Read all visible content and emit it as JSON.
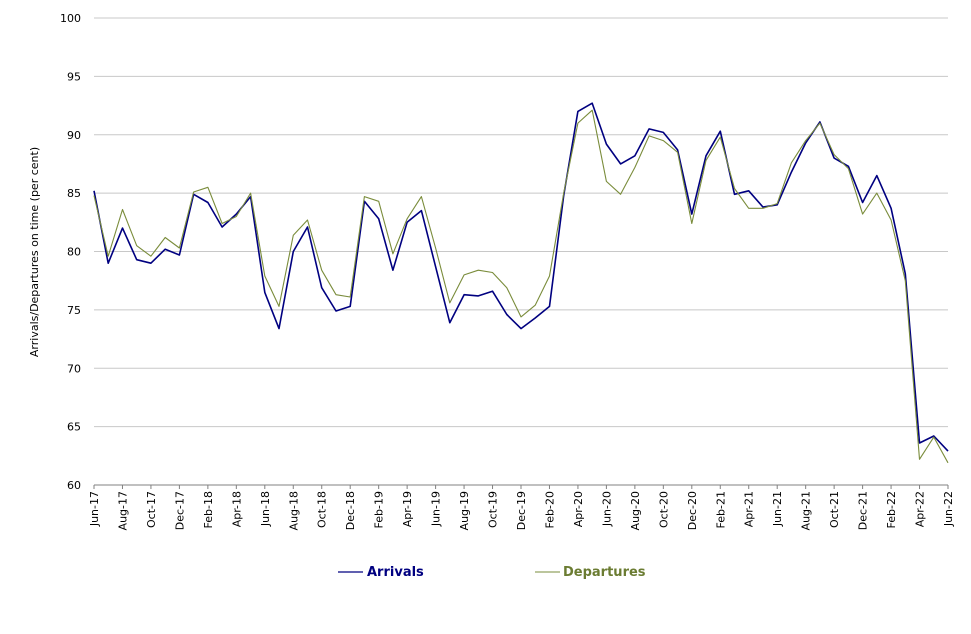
{
  "chart_data": {
    "type": "line",
    "ylabel": "Arrivals/Departures on time (per cent)",
    "xlabel": "",
    "ylim": [
      60,
      100
    ],
    "yticks": [
      60,
      65,
      70,
      75,
      80,
      85,
      90,
      95,
      100
    ],
    "grid": "horizontal",
    "legend_position": "bottom",
    "x": [
      "Jun-17",
      "Jul-17",
      "Aug-17",
      "Sep-17",
      "Oct-17",
      "Nov-17",
      "Dec-17",
      "Jan-18",
      "Feb-18",
      "Mar-18",
      "Apr-18",
      "May-18",
      "Jun-18",
      "Jul-18",
      "Aug-18",
      "Sep-18",
      "Oct-18",
      "Nov-18",
      "Dec-18",
      "Jan-19",
      "Feb-19",
      "Mar-19",
      "Apr-19",
      "May-19",
      "Jun-19",
      "Jul-19",
      "Aug-19",
      "Sep-19",
      "Oct-19",
      "Nov-19",
      "Dec-19",
      "Jan-20",
      "Feb-20",
      "Mar-20",
      "Apr-20",
      "May-20",
      "Jun-20",
      "Jul-20",
      "Aug-20",
      "Sep-20",
      "Oct-20",
      "Nov-20",
      "Dec-20",
      "Jan-21",
      "Feb-21",
      "Mar-21",
      "Apr-21",
      "May-21",
      "Jun-21",
      "Jul-21",
      "Aug-21",
      "Sep-21",
      "Oct-21",
      "Nov-21",
      "Dec-21",
      "Jan-22",
      "Feb-22",
      "Mar-22",
      "Apr-22",
      "May-22",
      "Jun-22"
    ],
    "xtick_labels": [
      "Jun-17",
      "Aug-17",
      "Oct-17",
      "Dec-17",
      "Feb-18",
      "Apr-18",
      "Jun-18",
      "Aug-18",
      "Oct-18",
      "Dec-18",
      "Feb-19",
      "Apr-19",
      "Jun-19",
      "Aug-19",
      "Oct-19",
      "Dec-19",
      "Feb-20",
      "Apr-20",
      "Jun-20",
      "Aug-20",
      "Oct-20",
      "Dec-20",
      "Feb-21",
      "Apr-21",
      "Jun-21",
      "Aug-21",
      "Oct-21",
      "Dec-21",
      "Feb-22",
      "Apr-22",
      "Jun-22"
    ],
    "series": [
      {
        "name": "Arrivals",
        "color": "#000080",
        "values": [
          85.2,
          79.0,
          82.0,
          79.3,
          79.0,
          80.2,
          79.7,
          84.9,
          84.2,
          82.1,
          83.2,
          84.7,
          76.5,
          73.4,
          80.0,
          82.1,
          76.9,
          74.9,
          75.3,
          84.3,
          82.8,
          78.4,
          82.5,
          83.5,
          78.7,
          73.9,
          76.3,
          76.2,
          76.6,
          74.6,
          73.4,
          74.3,
          75.3,
          84.8,
          92.0,
          92.7,
          89.2,
          87.5,
          88.2,
          90.5,
          90.2,
          88.7,
          83.2,
          88.2,
          90.3,
          84.9,
          85.2,
          83.8,
          84.0,
          86.8,
          89.3,
          91.1,
          88.0,
          87.3,
          84.2,
          86.5,
          83.7,
          78.1,
          63.6,
          64.2,
          62.9
        ]
      },
      {
        "name": "Departures",
        "color": "#7a8c3b",
        "values": [
          84.8,
          79.6,
          83.6,
          80.5,
          79.6,
          81.2,
          80.3,
          85.1,
          85.5,
          82.4,
          83.0,
          85.0,
          77.9,
          75.3,
          81.4,
          82.7,
          78.4,
          76.3,
          76.1,
          84.7,
          84.3,
          79.8,
          82.8,
          84.7,
          80.3,
          75.6,
          78.0,
          78.4,
          78.2,
          76.9,
          74.4,
          75.4,
          77.9,
          85.0,
          91.0,
          92.1,
          86.0,
          84.9,
          87.2,
          89.9,
          89.5,
          88.5,
          82.4,
          87.8,
          89.8,
          85.4,
          83.7,
          83.7,
          84.1,
          87.6,
          89.5,
          91.0,
          88.3,
          87.1,
          83.2,
          85.0,
          82.7,
          77.5,
          62.2,
          64.1,
          61.9
        ]
      }
    ]
  }
}
